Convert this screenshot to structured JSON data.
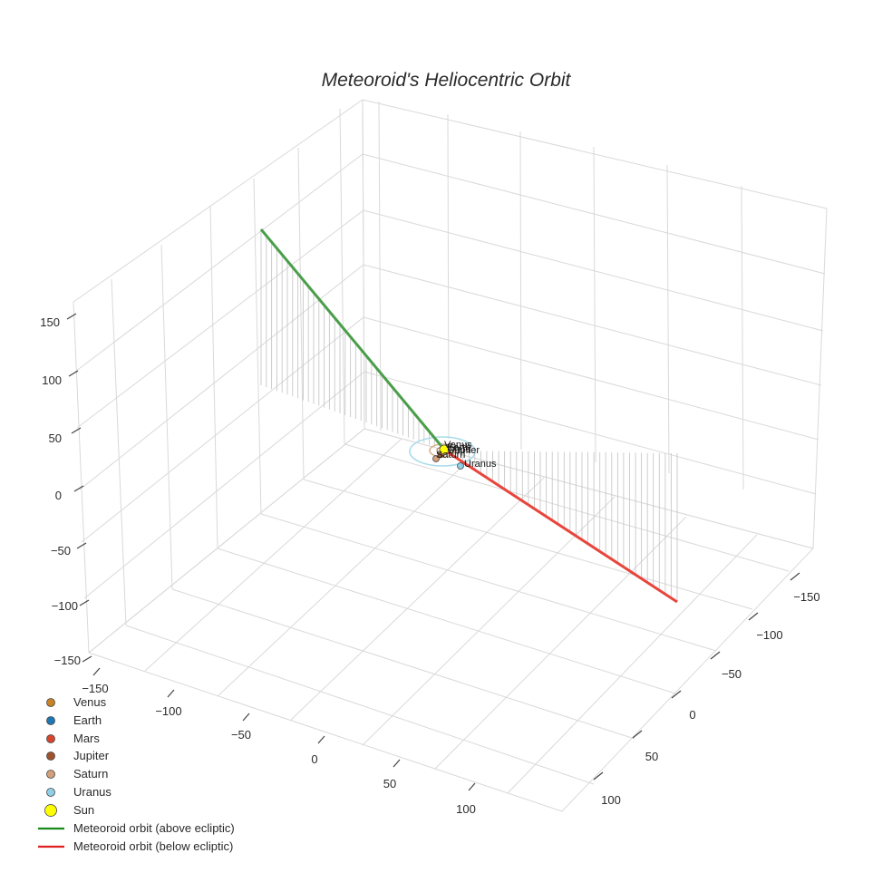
{
  "chart_data": {
    "type": "scatter3d",
    "title": "Meteoroid's Heliocentric Orbit",
    "axes": {
      "z_ticks": [
        "150",
        "100",
        "50",
        "0",
        "−50",
        "−100",
        "−150"
      ],
      "x_ticks": [
        "−150",
        "−100",
        "−50",
        "0",
        "50",
        "100"
      ],
      "y_ticks": [
        "−150",
        "−100",
        "−50",
        "0",
        "50",
        "100"
      ],
      "range": [
        -150,
        150
      ],
      "grid": true
    },
    "legend": {
      "placement": "bottom-left",
      "items": [
        {
          "label": "Venus",
          "kind": "marker",
          "color": "#c98226"
        },
        {
          "label": "Earth",
          "kind": "marker",
          "color": "#1f77b4"
        },
        {
          "label": "Mars",
          "kind": "marker",
          "color": "#d7452a"
        },
        {
          "label": "Jupiter",
          "kind": "marker",
          "color": "#a0522d"
        },
        {
          "label": "Saturn",
          "kind": "marker",
          "color": "#d2a07a"
        },
        {
          "label": "Uranus",
          "kind": "marker",
          "color": "#8fd0e8"
        },
        {
          "label": "Sun",
          "kind": "marker-large",
          "color": "#ffff00"
        },
        {
          "label": "Meteoroid orbit (above ecliptic)",
          "kind": "line",
          "color": "#1a8a1a"
        },
        {
          "label": "Meteoroid orbit (below ecliptic)",
          "kind": "line",
          "color": "#e02020"
        }
      ]
    },
    "planet_labels": [
      "Venus",
      "Earth",
      "Mars",
      "Jupiter",
      "Saturn",
      "Uranus"
    ],
    "orbit_colors": {
      "above": "#4a9e4a",
      "below": "#e8453c",
      "drop_lines": "#c8c8c8",
      "uranus_orbit": "#a8dcea",
      "saturn_orbit": "#d9b08c",
      "sun": "#ffff00"
    }
  }
}
